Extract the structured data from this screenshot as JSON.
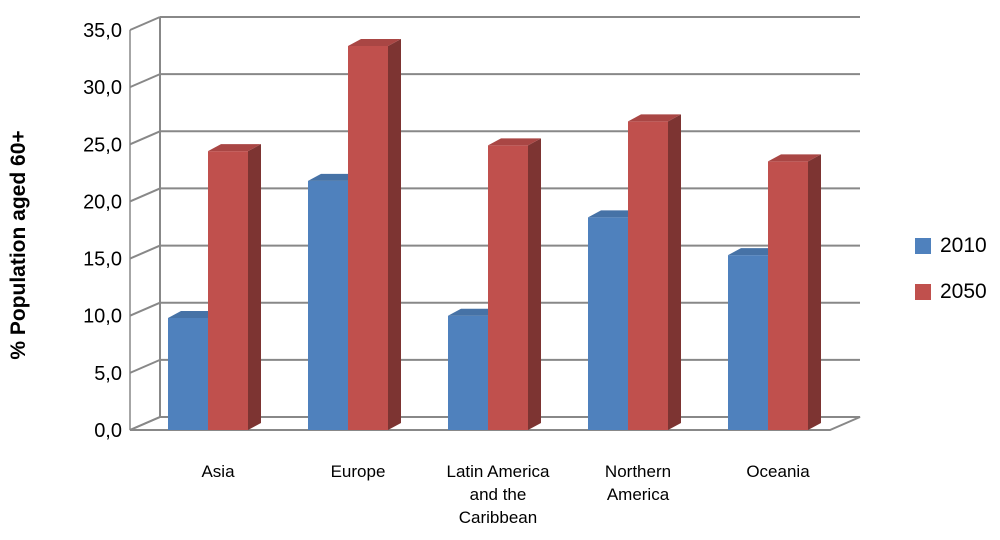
{
  "chart_data": {
    "type": "bar",
    "title": "",
    "ylabel": "% Population aged 60+",
    "xlabel": "",
    "ylim": [
      0,
      35
    ],
    "yticks": [
      "0,0",
      "5,0",
      "10,0",
      "15,0",
      "20,0",
      "25,0",
      "30,0",
      "35,0"
    ],
    "grid": true,
    "legend_position": "right",
    "categories": [
      [
        "Asia"
      ],
      [
        "Europe"
      ],
      [
        "Latin America",
        "and the",
        "Caribbean"
      ],
      [
        "Northern",
        "America"
      ],
      [
        "Oceania"
      ]
    ],
    "series": [
      {
        "name": "2010",
        "color": "#4F81BD",
        "values": [
          9.8,
          21.8,
          10.0,
          18.6,
          15.3
        ]
      },
      {
        "name": "2050",
        "color": "#C0504D",
        "values": [
          24.4,
          33.6,
          24.9,
          27.0,
          23.5
        ]
      }
    ]
  }
}
